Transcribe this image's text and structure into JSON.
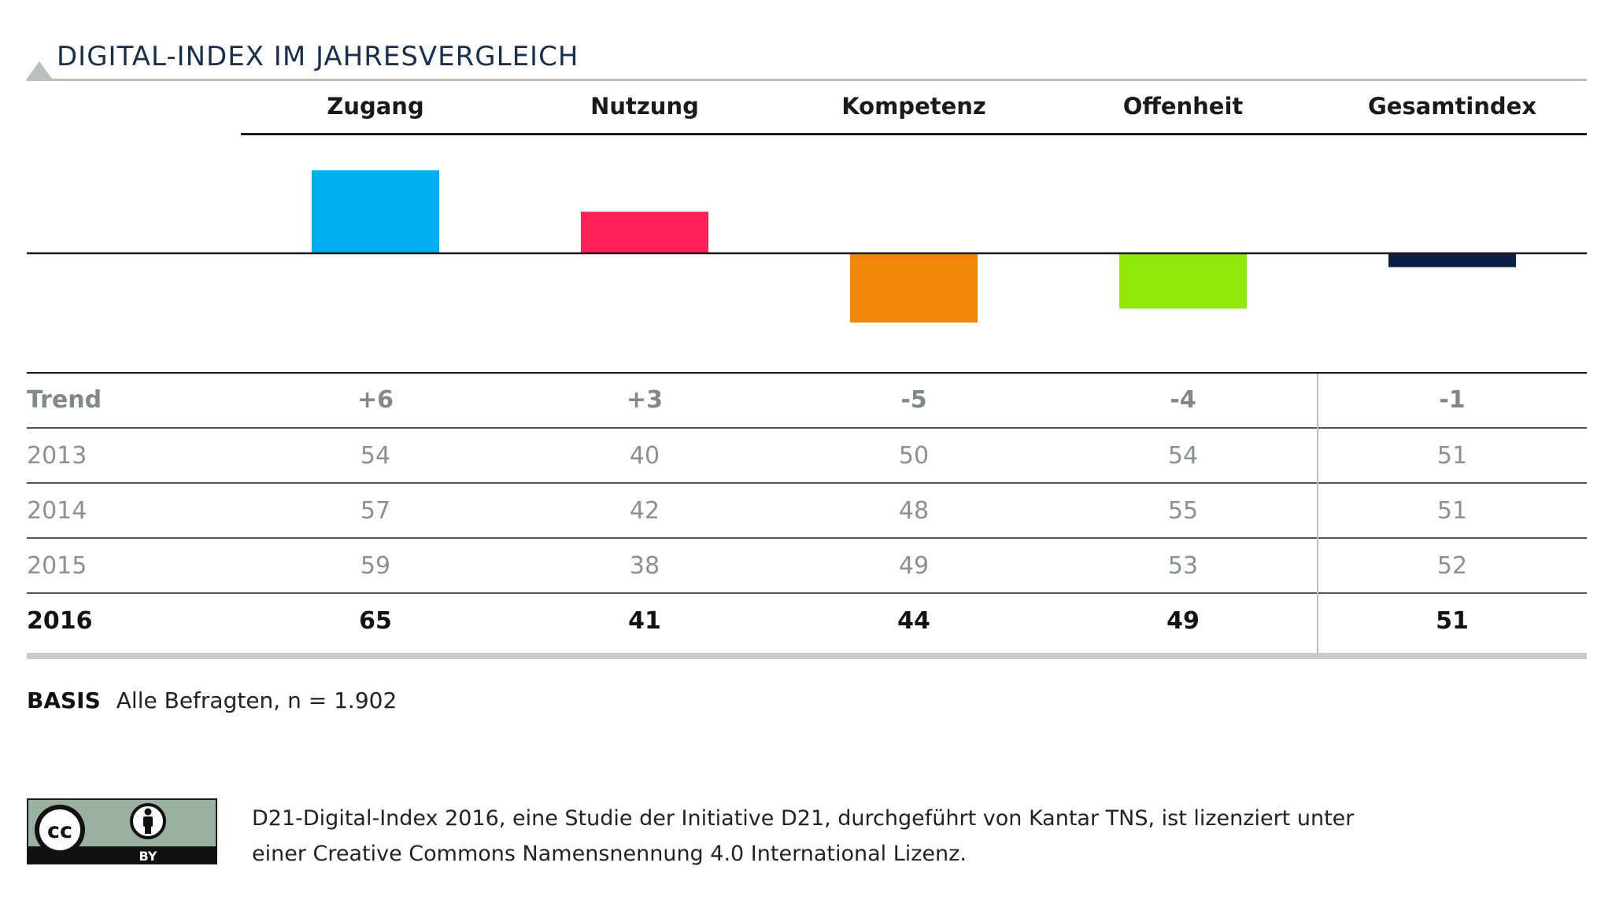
{
  "title": "DIGITAL-INDEX IM JAHRESVERGLEICH",
  "chart_data": {
    "type": "bar",
    "categories": [
      "Zugang",
      "Nutzung",
      "Kompetenz",
      "Offenheit",
      "Gesamtindex"
    ],
    "values": [
      6,
      3,
      -5,
      -4,
      -1
    ],
    "colors": [
      "#00aeef",
      "#ff2157",
      "#f0870a",
      "#8ee80a",
      "#0d1f44"
    ],
    "baseline": 0,
    "ylim": [
      -7,
      7
    ]
  },
  "table": {
    "trend_label": "Trend",
    "trend_values": [
      "+6",
      "+3",
      "-5",
      "-4",
      "-1"
    ],
    "rows": [
      {
        "year": "2013",
        "values": [
          "54",
          "40",
          "50",
          "54",
          "51"
        ]
      },
      {
        "year": "2014",
        "values": [
          "57",
          "42",
          "48",
          "55",
          "51"
        ]
      },
      {
        "year": "2015",
        "values": [
          "59",
          "38",
          "49",
          "53",
          "52"
        ]
      },
      {
        "year": "2016",
        "values": [
          "65",
          "41",
          "44",
          "49",
          "51"
        ]
      }
    ]
  },
  "basis": {
    "label": "BASIS",
    "text": "Alle Befragten, n = 1.902"
  },
  "license": {
    "badge_cc": "cc",
    "badge_by": "BY",
    "line1": "D21-Digital-Index 2016, eine Studie der Initiative D21, durchgeführt von Kantar TNS, ist lizenziert unter",
    "line2": "einer Creative Commons Namensnennung 4.0 International Lizenz."
  }
}
